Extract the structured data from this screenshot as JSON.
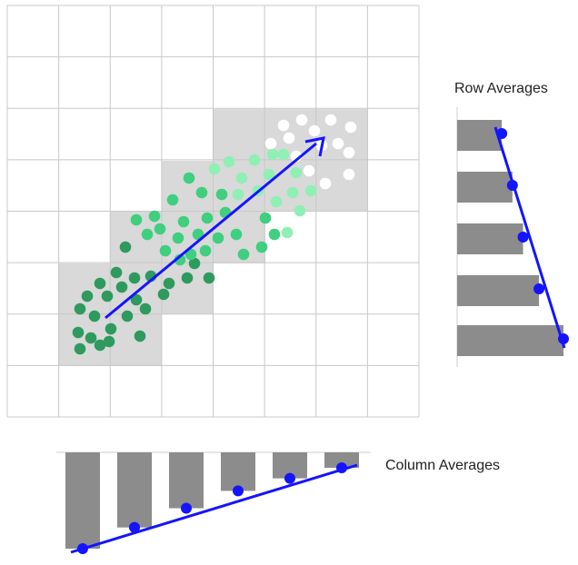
{
  "labels": {
    "row_averages": "Row Averages",
    "column_averages": "Column Averages"
  },
  "colors": {
    "grid_line": "#c8c8c8",
    "shaded_cell": "#d9d9d9",
    "bar": "#8c8c8c",
    "trend": "#1414ff",
    "point_dark": "#2e9a5e",
    "point_mid": "#3fcf7e",
    "point_light": "#8ef0b4",
    "point_white": "#ffffff"
  },
  "row_averages": [
    0.42,
    0.52,
    0.62,
    0.77,
    1.0
  ],
  "column_averages": [
    1.0,
    0.78,
    0.58,
    0.4,
    0.27,
    0.16
  ]
}
